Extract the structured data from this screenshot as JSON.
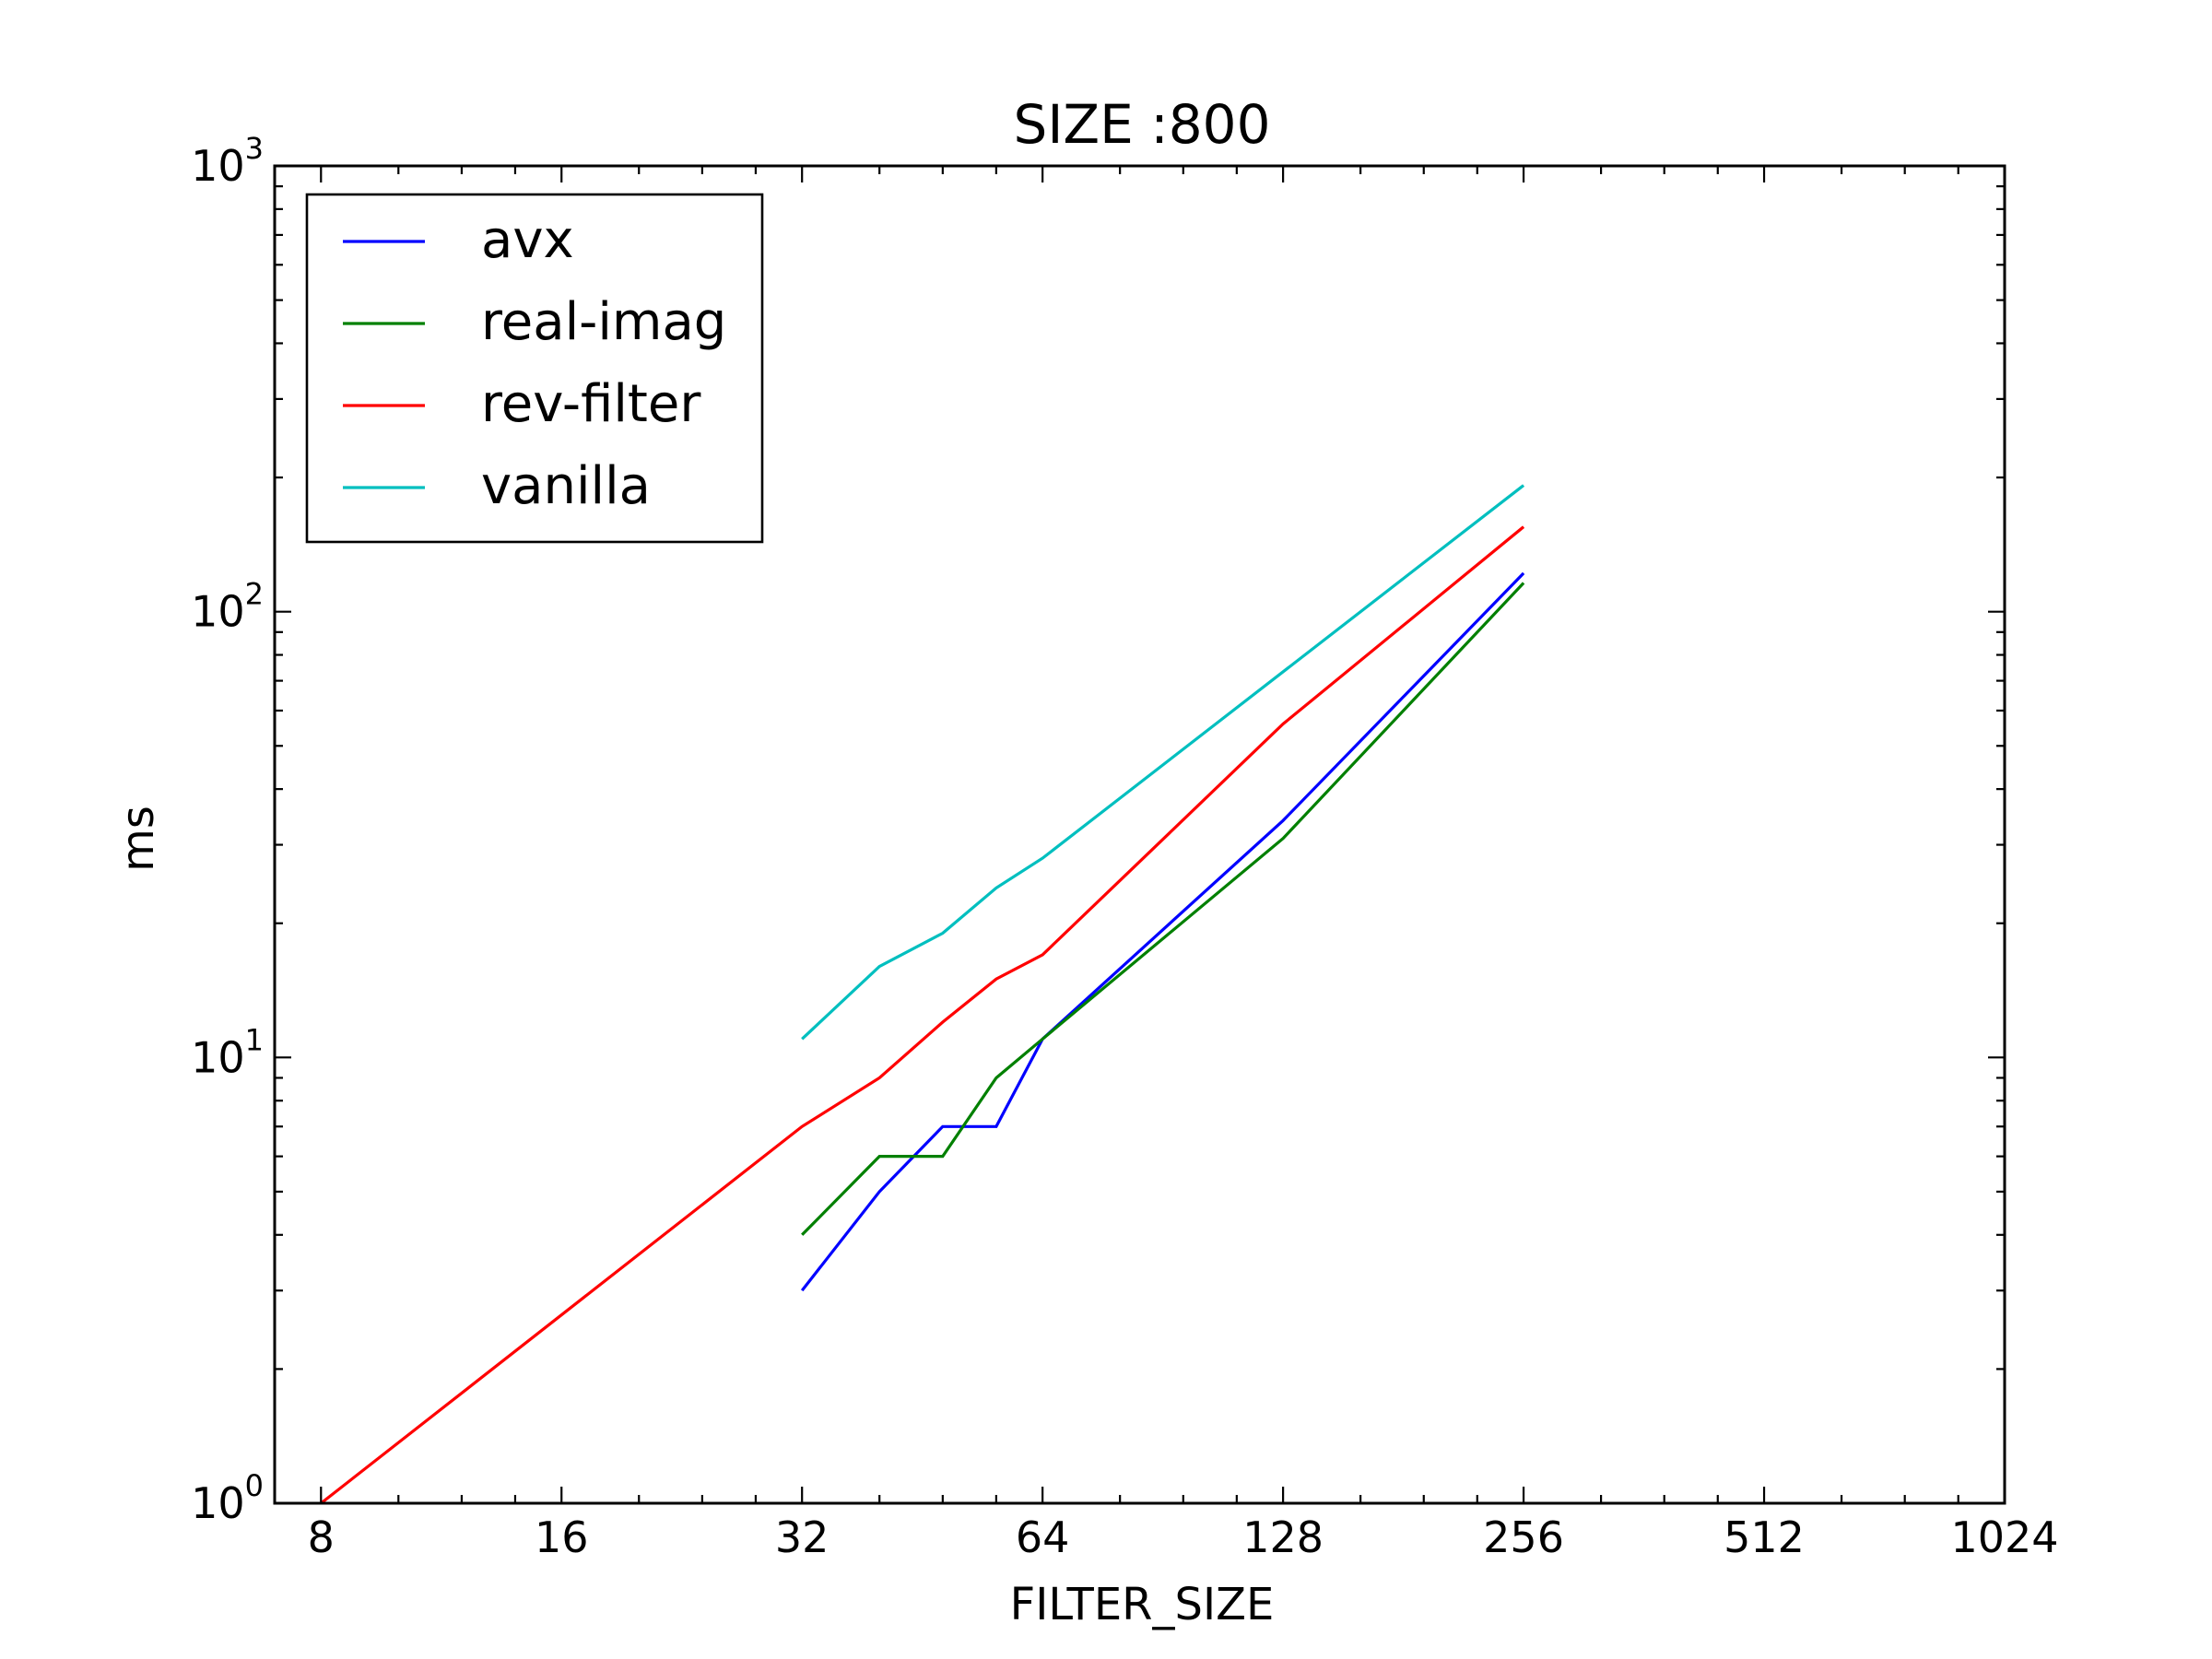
{
  "chart_data": {
    "type": "line",
    "title": "SIZE :800",
    "xlabel": "FILTER_SIZE",
    "ylabel": "ms",
    "x_scale": "log2",
    "y_scale": "log10",
    "xlim": [
      7,
      1024
    ],
    "ylim": [
      1,
      1000
    ],
    "x_ticks": [
      8,
      16,
      32,
      64,
      128,
      256,
      512,
      1024
    ],
    "x_tick_labels": [
      "8",
      "16",
      "32",
      "64",
      "128",
      "256",
      "512",
      "1024"
    ],
    "y_ticks": [
      1,
      10,
      100,
      1000
    ],
    "y_tick_labels": [
      {
        "base": "10",
        "exp": "0"
      },
      {
        "base": "10",
        "exp": "1"
      },
      {
        "base": "10",
        "exp": "2"
      },
      {
        "base": "10",
        "exp": "3"
      }
    ],
    "grid": false,
    "legend_position": "top-left",
    "series": [
      {
        "name": "avx",
        "color": "#0000ff",
        "x": [
          32,
          40,
          48,
          56,
          64,
          128,
          256
        ],
        "y": [
          3,
          5,
          7,
          7,
          11,
          34,
          122
        ]
      },
      {
        "name": "real-imag",
        "color": "#008000",
        "x": [
          32,
          40,
          48,
          56,
          64,
          128,
          256
        ],
        "y": [
          4,
          6,
          6,
          9,
          11,
          31,
          116
        ]
      },
      {
        "name": "rev-filter",
        "color": "#ff0000",
        "x": [
          8,
          32,
          40,
          48,
          56,
          64,
          128,
          256
        ],
        "y": [
          1,
          7,
          9,
          12,
          15,
          17,
          56,
          155
        ]
      },
      {
        "name": "vanilla",
        "color": "#00bfbf",
        "x": [
          32,
          40,
          48,
          56,
          64,
          256
        ],
        "y": [
          11,
          16,
          19,
          24,
          28,
          192
        ]
      }
    ]
  }
}
